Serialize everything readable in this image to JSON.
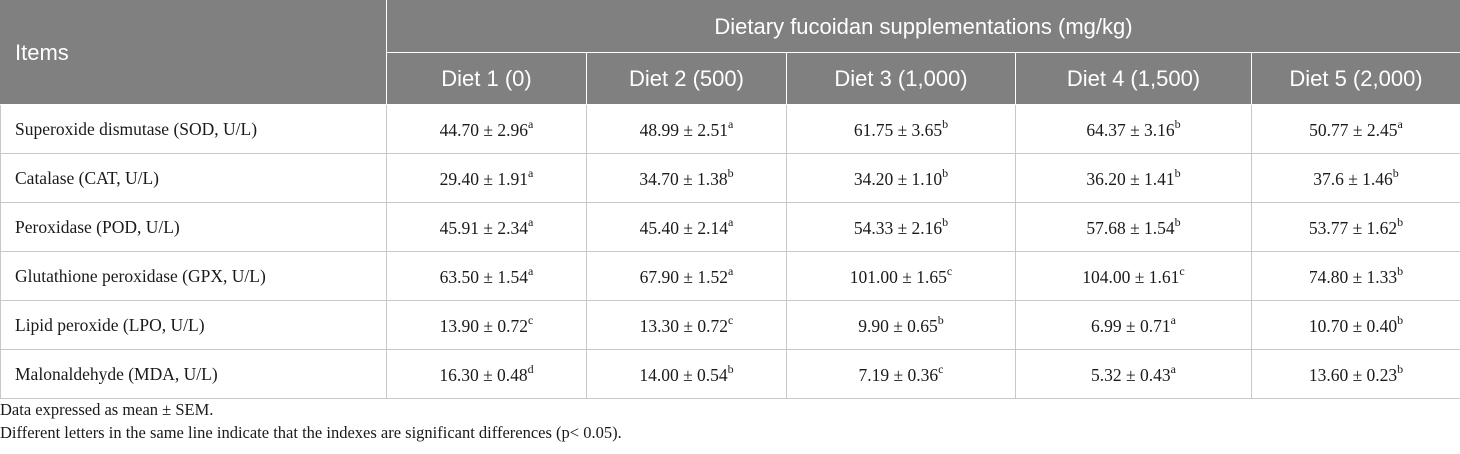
{
  "table": {
    "header": {
      "items_label": "Items",
      "group_label": "Dietary fucoidan supplementations (mg/kg)",
      "diets": [
        "Diet 1 (0)",
        "Diet 2 (500)",
        "Diet 3 (1,000)",
        "Diet 4 (1,500)",
        "Diet 5 (2,000)"
      ]
    },
    "rows": [
      {
        "label": "Superoxide dismutase (SOD, U/L)",
        "cells": [
          {
            "value": "44.70 ± 2.96",
            "sup": "a"
          },
          {
            "value": "48.99 ± 2.51",
            "sup": "a"
          },
          {
            "value": "61.75 ± 3.65",
            "sup": "b"
          },
          {
            "value": "64.37 ± 3.16",
            "sup": "b"
          },
          {
            "value": "50.77 ± 2.45",
            "sup": "a"
          }
        ]
      },
      {
        "label": "Catalase (CAT, U/L)",
        "cells": [
          {
            "value": "29.40 ± 1.91",
            "sup": "a"
          },
          {
            "value": "34.70 ± 1.38",
            "sup": "b"
          },
          {
            "value": "34.20 ± 1.10",
            "sup": "b"
          },
          {
            "value": "36.20 ± 1.41",
            "sup": "b"
          },
          {
            "value": "37.6 ± 1.46",
            "sup": "b"
          }
        ]
      },
      {
        "label": "Peroxidase (POD, U/L)",
        "cells": [
          {
            "value": "45.91 ± 2.34",
            "sup": "a"
          },
          {
            "value": "45.40 ± 2.14",
            "sup": "a"
          },
          {
            "value": "54.33 ± 2.16",
            "sup": "b"
          },
          {
            "value": "57.68 ± 1.54",
            "sup": "b"
          },
          {
            "value": "53.77 ± 1.62",
            "sup": "b"
          }
        ]
      },
      {
        "label": "Glutathione peroxidase (GPX, U/L)",
        "cells": [
          {
            "value": "63.50 ± 1.54",
            "sup": "a"
          },
          {
            "value": "67.90 ± 1.52",
            "sup": "a"
          },
          {
            "value": "101.00 ± 1.65",
            "sup": "c"
          },
          {
            "value": "104.00 ± 1.61",
            "sup": "c"
          },
          {
            "value": "74.80 ± 1.33",
            "sup": "b"
          }
        ]
      },
      {
        "label": "Lipid peroxide (LPO, U/L)",
        "cells": [
          {
            "value": "13.90 ± 0.72",
            "sup": "c"
          },
          {
            "value": "13.30 ± 0.72",
            "sup": "c"
          },
          {
            "value": "9.90 ± 0.65",
            "sup": "b"
          },
          {
            "value": "6.99 ± 0.71",
            "sup": "a"
          },
          {
            "value": "10.70 ± 0.40",
            "sup": "b"
          }
        ]
      },
      {
        "label": "Malonaldehyde (MDA, U/L)",
        "cells": [
          {
            "value": "16.30 ± 0.48",
            "sup": "d"
          },
          {
            "value": "14.00 ± 0.54",
            "sup": "b"
          },
          {
            "value": "7.19 ± 0.36",
            "sup": "c"
          },
          {
            "value": "5.32 ± 0.43",
            "sup": "a"
          },
          {
            "value": "13.60 ± 0.23",
            "sup": "b"
          }
        ]
      }
    ]
  },
  "footnotes": [
    "Data expressed as mean ± SEM.",
    "Different letters in the same line indicate that the indexes are significant differences (p< 0.05)."
  ]
}
